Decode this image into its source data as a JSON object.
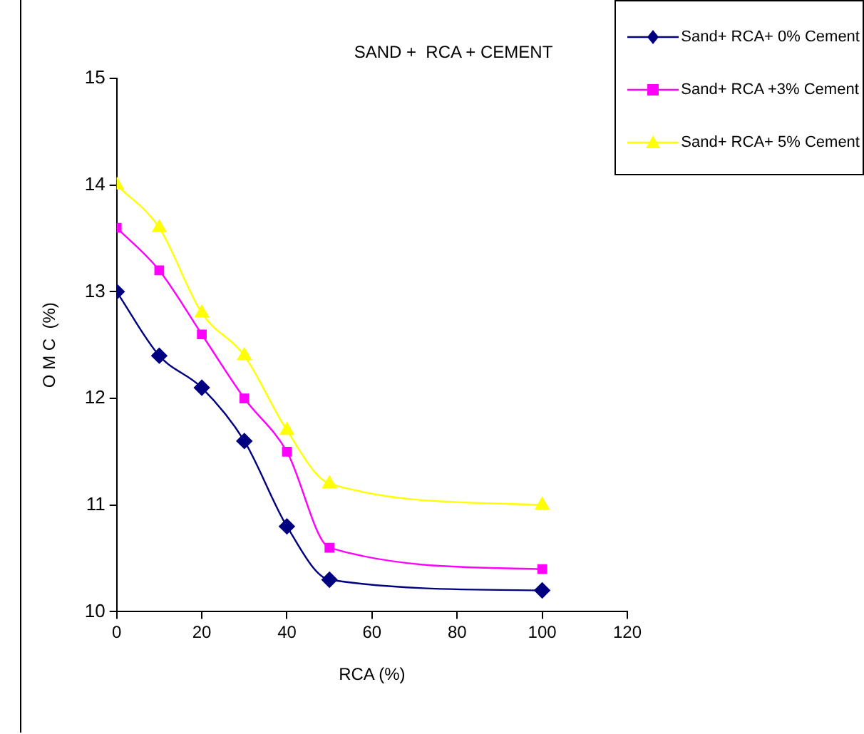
{
  "chart_data": {
    "type": "line",
    "title": "SAND +  RCA + CEMENT",
    "xlabel": "RCA (%)",
    "ylabel": "O M C  (%)",
    "x": [
      0,
      10,
      20,
      30,
      40,
      50,
      100
    ],
    "xlim": [
      0,
      120
    ],
    "xticks": [
      0,
      20,
      40,
      60,
      80,
      100,
      120
    ],
    "ylim": [
      10,
      15
    ],
    "yticks": [
      10,
      11,
      12,
      13,
      14,
      15
    ],
    "grid": false,
    "legend": "top right",
    "series": [
      {
        "name": "Sand+ RCA+ 0% Cement",
        "color": "#000080",
        "marker": "diamond",
        "values": [
          13.0,
          12.4,
          12.1,
          11.6,
          10.8,
          10.3,
          10.2
        ]
      },
      {
        "name": "Sand+ RCA +3% Cement",
        "color": "#ff00ff",
        "marker": "square",
        "values": [
          13.6,
          13.2,
          12.6,
          12.0,
          11.5,
          10.6,
          10.4
        ]
      },
      {
        "name": "Sand+ RCA+ 5% Cement",
        "color": "#ffff00",
        "marker": "triangle",
        "values": [
          14.0,
          13.6,
          12.8,
          12.4,
          11.7,
          11.2,
          11.0
        ]
      }
    ]
  }
}
